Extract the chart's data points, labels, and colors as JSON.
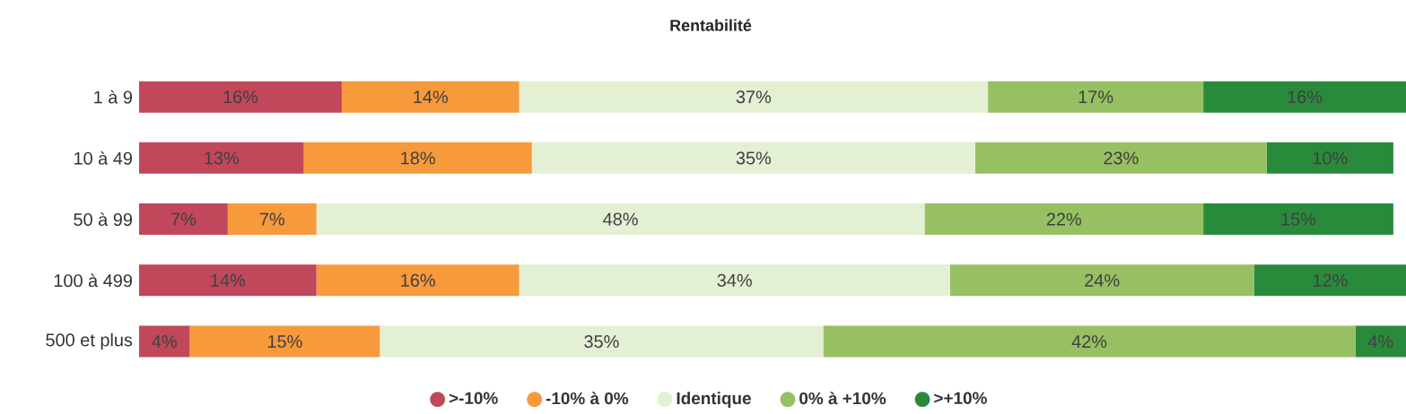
{
  "chart_data": {
    "type": "bar",
    "orientation": "horizontal",
    "stacked": true,
    "title": "Rentabilité",
    "categories": [
      "1 à 9",
      "10 à 49",
      "50 à 99",
      "100 à 499",
      "500 et plus"
    ],
    "tick_labels": "y",
    "legend": "bottom",
    "series": [
      {
        "name": ">-10%",
        "color": "#c0485a",
        "values": [
          16,
          13,
          7,
          14,
          4
        ],
        "value_labels": [
          "16%",
          "13%",
          "7%",
          "14%",
          "4%"
        ]
      },
      {
        "name": "-10% à 0%",
        "color": "#f79a3c",
        "values": [
          14,
          18,
          7,
          16,
          15
        ],
        "value_labels": [
          "14%",
          "18%",
          "7%",
          "16%",
          "15%"
        ]
      },
      {
        "name": "Identique",
        "color": "#e3f0d3",
        "values": [
          37,
          35,
          48,
          34,
          35
        ],
        "value_labels": [
          "37%",
          "35%",
          "48%",
          "34%",
          "35%"
        ]
      },
      {
        "name": "0% à +10%",
        "color": "#97c062",
        "values": [
          17,
          23,
          22,
          24,
          42
        ],
        "value_labels": [
          "17%",
          "23%",
          "22%",
          "24%",
          "42%"
        ]
      },
      {
        "name": ">+10%",
        "color": "#2a8a3c",
        "values": [
          16,
          10,
          15,
          12,
          4
        ],
        "value_labels": [
          "16%",
          "10%",
          "15%",
          "12%",
          "4%"
        ]
      }
    ]
  }
}
